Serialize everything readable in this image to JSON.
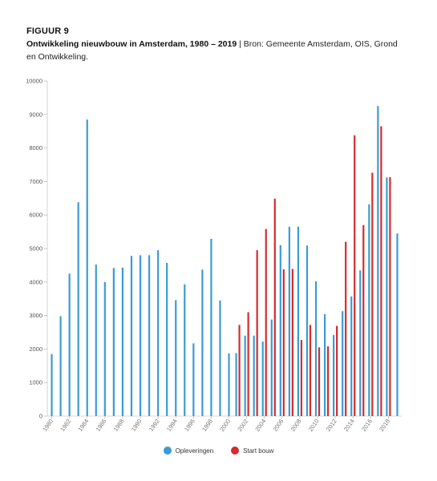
{
  "figure": {
    "label": "FIGUUR 9",
    "title_bold": "Ontwikkeling nieuwbouw in Amsterdam, 1980 – 2019",
    "title_rest": " | Bron: Gemeente Amsterdam, OIS, Grond en Ontwikkeling."
  },
  "colors": {
    "opleveringen": "#3b9bd6",
    "start_bouw": "#d62b2b"
  },
  "chart_data": {
    "type": "bar",
    "categories": [
      "1980",
      "1981",
      "1982",
      "1983",
      "1984",
      "1985",
      "1986",
      "1987",
      "1988",
      "1989",
      "1990",
      "1991",
      "1992",
      "1993",
      "1994",
      "1995",
      "1996",
      "1997",
      "1998",
      "1999",
      "2000",
      "2001",
      "2002",
      "2003",
      "2004",
      "2005",
      "2006",
      "2007",
      "2008",
      "2009",
      "2010",
      "2011",
      "2012",
      "2013",
      "2014",
      "2015",
      "2016",
      "2017",
      "2018",
      "2019"
    ],
    "x_tick_labels": [
      "1980",
      "1982",
      "1984",
      "1986",
      "1988",
      "1990",
      "1992",
      "1994",
      "1996",
      "1998",
      "2000",
      "2002",
      "2004",
      "2006",
      "2008",
      "2010",
      "2012",
      "2014",
      "2016",
      "2018"
    ],
    "series": [
      {
        "name": "Opleveringen",
        "values": [
          1850,
          2980,
          4250,
          6380,
          8850,
          4520,
          4000,
          4420,
          4430,
          4780,
          4800,
          4800,
          4950,
          4570,
          3460,
          3930,
          2170,
          4370,
          5290,
          3450,
          1870,
          1880,
          2400,
          2400,
          2220,
          2880,
          5100,
          5650,
          5650,
          5090,
          4020,
          3040,
          2420,
          3130,
          3570,
          4350,
          6320,
          9250,
          7120,
          5450
        ]
      },
      {
        "name": "Start bouw",
        "values": [
          null,
          null,
          null,
          null,
          null,
          null,
          null,
          null,
          null,
          null,
          null,
          null,
          null,
          null,
          null,
          null,
          null,
          null,
          null,
          null,
          null,
          2720,
          3100,
          4950,
          5580,
          6490,
          4380,
          4390,
          2270,
          2720,
          2050,
          2080,
          2690,
          5200,
          8380,
          5700,
          7260,
          8650,
          7130,
          null
        ]
      }
    ],
    "ylim": [
      0,
      10000
    ],
    "y_ticks": [
      0,
      1000,
      2000,
      3000,
      4000,
      5000,
      6000,
      7000,
      8000,
      9000,
      10000
    ],
    "xlabel": "",
    "ylabel": "",
    "grid": false,
    "legend": "bottom-center"
  },
  "legend": {
    "opleveringen": "Opleveringen",
    "start_bouw": "Start bouw"
  }
}
